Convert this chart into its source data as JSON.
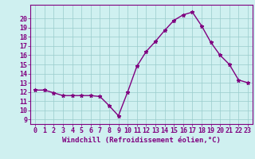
{
  "x": [
    0,
    1,
    2,
    3,
    4,
    5,
    6,
    7,
    8,
    9,
    10,
    11,
    12,
    13,
    14,
    15,
    16,
    17,
    18,
    19,
    20,
    21,
    22,
    23
  ],
  "y": [
    12.2,
    12.2,
    11.9,
    11.6,
    11.6,
    11.6,
    11.6,
    11.5,
    10.5,
    9.4,
    12.0,
    14.8,
    16.4,
    17.5,
    18.7,
    19.8,
    20.4,
    20.7,
    19.2,
    17.4,
    16.0,
    15.0,
    13.3,
    13.0
  ],
  "line_color": "#800080",
  "marker": "*",
  "marker_size": 3.5,
  "bg_color": "#cff0f0",
  "grid_color": "#99cccc",
  "xlabel": "Windchill (Refroidissement éolien,°C)",
  "xlim": [
    -0.5,
    23.5
  ],
  "ylim": [
    8.5,
    21.5
  ],
  "yticks": [
    9,
    10,
    11,
    12,
    13,
    14,
    15,
    16,
    17,
    18,
    19,
    20
  ],
  "xticks": [
    0,
    1,
    2,
    3,
    4,
    5,
    6,
    7,
    8,
    9,
    10,
    11,
    12,
    13,
    14,
    15,
    16,
    17,
    18,
    19,
    20,
    21,
    22,
    23
  ],
  "xlabel_fontsize": 6.5,
  "tick_fontsize": 6.0,
  "axis_color": "#800080",
  "spine_color": "#800080",
  "linewidth": 1.0
}
